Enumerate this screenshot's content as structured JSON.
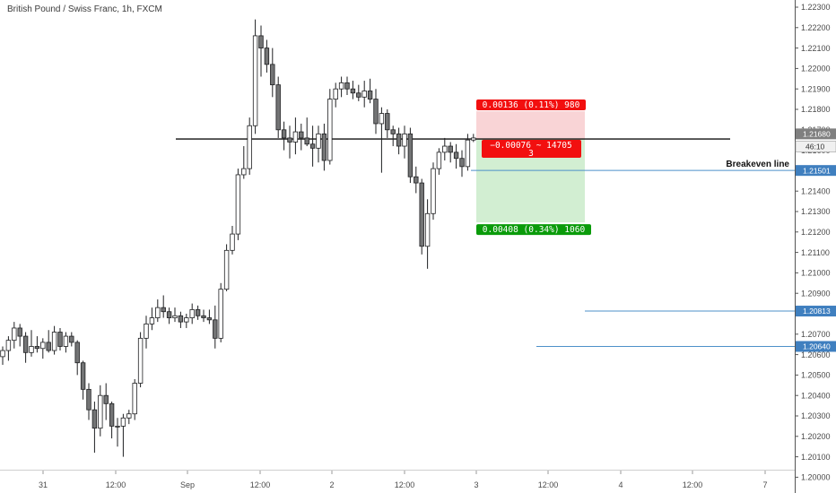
{
  "chart_data": {
    "type": "candlestick",
    "title": "British Pound / Swiss Franc, 1h, FXCM",
    "y_ticks": [
      "1.22300",
      "1.22200",
      "1.22100",
      "1.22000",
      "1.21900",
      "1.21800",
      "1.21700",
      "1.21600",
      "1.21500",
      "1.21400",
      "1.21300",
      "1.21200",
      "1.21100",
      "1.21000",
      "1.20900",
      "1.20800",
      "1.20700",
      "1.20600",
      "1.20500",
      "1.20400",
      "1.20300",
      "1.20200",
      "1.20100",
      "1.20000"
    ],
    "x_ticks": [
      "31",
      "12:00",
      "Sep",
      "12:00",
      "2",
      "12:00",
      "3",
      "12:00",
      "4",
      "12:00",
      "7"
    ],
    "ylim": [
      1.2,
      1.2236
    ],
    "candles": [
      {
        "o": 1.2059,
        "h": 1.2064,
        "l": 1.2055,
        "c": 1.2062
      },
      {
        "o": 1.2062,
        "h": 1.2069,
        "l": 1.2057,
        "c": 1.2067
      },
      {
        "o": 1.2067,
        "h": 1.2076,
        "l": 1.2063,
        "c": 1.2073
      },
      {
        "o": 1.2073,
        "h": 1.2075,
        "l": 1.2064,
        "c": 1.2069
      },
      {
        "o": 1.2069,
        "h": 1.2071,
        "l": 1.2056,
        "c": 1.2061
      },
      {
        "o": 1.2061,
        "h": 1.2072,
        "l": 1.2059,
        "c": 1.2064
      },
      {
        "o": 1.2064,
        "h": 1.2069,
        "l": 1.2061,
        "c": 1.2063
      },
      {
        "o": 1.2063,
        "h": 1.2068,
        "l": 1.2058,
        "c": 1.2066
      },
      {
        "o": 1.2066,
        "h": 1.2072,
        "l": 1.2061,
        "c": 1.2062
      },
      {
        "o": 1.2062,
        "h": 1.2074,
        "l": 1.206,
        "c": 1.2071
      },
      {
        "o": 1.2071,
        "h": 1.2073,
        "l": 1.2062,
        "c": 1.2064
      },
      {
        "o": 1.2064,
        "h": 1.2071,
        "l": 1.2061,
        "c": 1.2069
      },
      {
        "o": 1.2069,
        "h": 1.2071,
        "l": 1.2064,
        "c": 1.2066
      },
      {
        "o": 1.2066,
        "h": 1.2067,
        "l": 1.205,
        "c": 1.2056
      },
      {
        "o": 1.2056,
        "h": 1.2057,
        "l": 1.2038,
        "c": 1.2043
      },
      {
        "o": 1.2043,
        "h": 1.2046,
        "l": 1.2028,
        "c": 1.2033
      },
      {
        "o": 1.2033,
        "h": 1.2037,
        "l": 1.2012,
        "c": 1.2024
      },
      {
        "o": 1.2024,
        "h": 1.2045,
        "l": 1.202,
        "c": 1.204
      },
      {
        "o": 1.204,
        "h": 1.2046,
        "l": 1.2028,
        "c": 1.2036
      },
      {
        "o": 1.2036,
        "h": 1.2037,
        "l": 1.2019,
        "c": 1.2025
      },
      {
        "o": 1.2025,
        "h": 1.2029,
        "l": 1.2015,
        "c": 1.2025
      },
      {
        "o": 1.2025,
        "h": 1.2031,
        "l": 1.201,
        "c": 1.2029
      },
      {
        "o": 1.2029,
        "h": 1.2033,
        "l": 1.2026,
        "c": 1.2031
      },
      {
        "o": 1.2031,
        "h": 1.2048,
        "l": 1.2028,
        "c": 1.2046
      },
      {
        "o": 1.2046,
        "h": 1.2071,
        "l": 1.2044,
        "c": 1.2068
      },
      {
        "o": 1.2068,
        "h": 1.2079,
        "l": 1.2063,
        "c": 1.2075
      },
      {
        "o": 1.2075,
        "h": 1.2083,
        "l": 1.2072,
        "c": 1.2078
      },
      {
        "o": 1.2078,
        "h": 1.2087,
        "l": 1.2076,
        "c": 1.2083
      },
      {
        "o": 1.2083,
        "h": 1.2089,
        "l": 1.2078,
        "c": 1.2081
      },
      {
        "o": 1.2081,
        "h": 1.2083,
        "l": 1.2075,
        "c": 1.2078
      },
      {
        "o": 1.2078,
        "h": 1.2083,
        "l": 1.2076,
        "c": 1.2079
      },
      {
        "o": 1.2079,
        "h": 1.2081,
        "l": 1.2073,
        "c": 1.2076
      },
      {
        "o": 1.2076,
        "h": 1.208,
        "l": 1.2073,
        "c": 1.2078
      },
      {
        "o": 1.2078,
        "h": 1.2085,
        "l": 1.2075,
        "c": 1.2082
      },
      {
        "o": 1.2082,
        "h": 1.2084,
        "l": 1.2077,
        "c": 1.2079
      },
      {
        "o": 1.2079,
        "h": 1.2082,
        "l": 1.2076,
        "c": 1.2078
      },
      {
        "o": 1.2078,
        "h": 1.2082,
        "l": 1.2075,
        "c": 1.2077
      },
      {
        "o": 1.2077,
        "h": 1.2084,
        "l": 1.2063,
        "c": 1.2068
      },
      {
        "o": 1.2068,
        "h": 1.2095,
        "l": 1.2066,
        "c": 1.2092
      },
      {
        "o": 1.2092,
        "h": 1.2114,
        "l": 1.2091,
        "c": 1.2111
      },
      {
        "o": 1.2111,
        "h": 1.2123,
        "l": 1.2109,
        "c": 1.2119
      },
      {
        "o": 1.2119,
        "h": 1.2151,
        "l": 1.2116,
        "c": 1.2148
      },
      {
        "o": 1.2148,
        "h": 1.2162,
        "l": 1.2146,
        "c": 1.2151
      },
      {
        "o": 1.2151,
        "h": 1.2176,
        "l": 1.2148,
        "c": 1.2172
      },
      {
        "o": 1.2172,
        "h": 1.2224,
        "l": 1.2168,
        "c": 1.2216
      },
      {
        "o": 1.2216,
        "h": 1.2221,
        "l": 1.2196,
        "c": 1.221
      },
      {
        "o": 1.221,
        "h": 1.2214,
        "l": 1.2198,
        "c": 1.2202
      },
      {
        "o": 1.2202,
        "h": 1.221,
        "l": 1.2186,
        "c": 1.2192
      },
      {
        "o": 1.2192,
        "h": 1.2196,
        "l": 1.2166,
        "c": 1.217
      },
      {
        "o": 1.217,
        "h": 1.2174,
        "l": 1.216,
        "c": 1.2166
      },
      {
        "o": 1.2166,
        "h": 1.2172,
        "l": 1.2156,
        "c": 1.2164
      },
      {
        "o": 1.2164,
        "h": 1.2176,
        "l": 1.2158,
        "c": 1.2169
      },
      {
        "o": 1.2169,
        "h": 1.2173,
        "l": 1.216,
        "c": 1.2166
      },
      {
        "o": 1.2166,
        "h": 1.2176,
        "l": 1.2162,
        "c": 1.2163
      },
      {
        "o": 1.2163,
        "h": 1.2172,
        "l": 1.2152,
        "c": 1.2161
      },
      {
        "o": 1.2161,
        "h": 1.2172,
        "l": 1.2154,
        "c": 1.2168
      },
      {
        "o": 1.2168,
        "h": 1.2173,
        "l": 1.215,
        "c": 1.2155
      },
      {
        "o": 1.2155,
        "h": 1.219,
        "l": 1.2153,
        "c": 1.2185
      },
      {
        "o": 1.2185,
        "h": 1.2193,
        "l": 1.2181,
        "c": 1.219
      },
      {
        "o": 1.219,
        "h": 1.2196,
        "l": 1.2186,
        "c": 1.2193
      },
      {
        "o": 1.2193,
        "h": 1.2196,
        "l": 1.2187,
        "c": 1.219
      },
      {
        "o": 1.219,
        "h": 1.2194,
        "l": 1.2185,
        "c": 1.2188
      },
      {
        "o": 1.2188,
        "h": 1.2192,
        "l": 1.2184,
        "c": 1.2186
      },
      {
        "o": 1.2186,
        "h": 1.2194,
        "l": 1.2181,
        "c": 1.2189
      },
      {
        "o": 1.2189,
        "h": 1.2195,
        "l": 1.2183,
        "c": 1.2185
      },
      {
        "o": 1.2185,
        "h": 1.219,
        "l": 1.2168,
        "c": 1.2173
      },
      {
        "o": 1.2173,
        "h": 1.2181,
        "l": 1.2149,
        "c": 1.2178
      },
      {
        "o": 1.2178,
        "h": 1.218,
        "l": 1.2166,
        "c": 1.217
      },
      {
        "o": 1.217,
        "h": 1.2172,
        "l": 1.2162,
        "c": 1.2168
      },
      {
        "o": 1.2168,
        "h": 1.2171,
        "l": 1.2158,
        "c": 1.2162
      },
      {
        "o": 1.2162,
        "h": 1.2172,
        "l": 1.2156,
        "c": 1.2168
      },
      {
        "o": 1.2168,
        "h": 1.2171,
        "l": 1.2144,
        "c": 1.2147
      },
      {
        "o": 1.2147,
        "h": 1.2152,
        "l": 1.2139,
        "c": 1.2144
      },
      {
        "o": 1.2144,
        "h": 1.2146,
        "l": 1.2109,
        "c": 1.2113
      },
      {
        "o": 1.2113,
        "h": 1.2136,
        "l": 1.2102,
        "c": 1.2129
      },
      {
        "o": 1.2129,
        "h": 1.2154,
        "l": 1.2126,
        "c": 1.2151
      },
      {
        "o": 1.2151,
        "h": 1.2161,
        "l": 1.2148,
        "c": 1.2159
      },
      {
        "o": 1.2159,
        "h": 1.2166,
        "l": 1.2155,
        "c": 1.2162
      },
      {
        "o": 1.2162,
        "h": 1.2164,
        "l": 1.2154,
        "c": 1.2159
      },
      {
        "o": 1.2159,
        "h": 1.2163,
        "l": 1.2151,
        "c": 1.2156
      },
      {
        "o": 1.2156,
        "h": 1.216,
        "l": 1.2147,
        "c": 1.2152
      },
      {
        "o": 1.2152,
        "h": 1.2168,
        "l": 1.215,
        "c": 1.2165
      },
      {
        "o": 1.2165,
        "h": 1.2168,
        "l": 1.2164,
        "c": 1.2166
      }
    ],
    "horizontal_lines": [
      {
        "price": 1.21655
      },
      {
        "price": 1.21501,
        "label": "Breakeven line"
      },
      {
        "price": 1.20813
      },
      {
        "price": 1.2064
      }
    ],
    "position": {
      "entry": 1.21655,
      "stop": 1.21791,
      "target": 1.21247,
      "stop_label": "0.00136 (0.11%) 980",
      "mid_label_1": "−0.00076 ~ 14705",
      "mid_label_2": "3",
      "target_label": "0.00408 (0.34%) 1060"
    },
    "price_tags": [
      {
        "text": "1.21680",
        "price": 1.2168,
        "style": "gray"
      },
      {
        "text": "46:10",
        "price": 1.21618,
        "style": "light"
      },
      {
        "text": "1.21501",
        "price": 1.21501,
        "style": "blue"
      },
      {
        "text": "1.20813",
        "price": 1.20813,
        "style": "blue"
      },
      {
        "text": "1.20640",
        "price": 1.2064,
        "style": "blue"
      }
    ],
    "colors": {
      "candle": "#737475",
      "candle_edge": "#1e1f21",
      "line": "#111111",
      "blue": "#4d90c9",
      "tag_blue": "#3f7fbf",
      "stop_zone": "#f8c9cc",
      "target_zone": "#cdeccd",
      "stop_box": "#f20f0f",
      "target_box": "#0a9b0a",
      "gray_tag": "#7f7f7f"
    },
    "grid": false
  }
}
